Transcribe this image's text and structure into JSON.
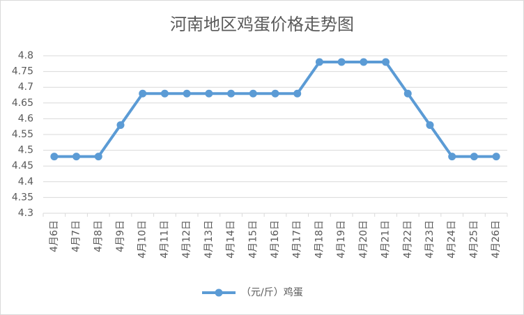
{
  "chart_data": {
    "type": "line",
    "title": "河南地区鸡蛋价格走势图",
    "categories": [
      "4月6日",
      "4月7日",
      "4月8日",
      "4月9日",
      "4月10日",
      "4月11日",
      "4月12日",
      "4月13日",
      "4月14日",
      "4月15日",
      "4月16日",
      "4月17日",
      "4月18日",
      "4月19日",
      "4月20日",
      "4月21日",
      "4月22日",
      "4月23日",
      "4月24日",
      "4月25日",
      "4月26日"
    ],
    "series": [
      {
        "name": "（元/斤）鸡蛋",
        "color": "#5b9bd5",
        "values": [
          4.48,
          4.48,
          4.48,
          4.58,
          4.68,
          4.68,
          4.68,
          4.68,
          4.68,
          4.68,
          4.68,
          4.68,
          4.78,
          4.78,
          4.78,
          4.78,
          4.68,
          4.58,
          4.48,
          4.48,
          4.48
        ]
      }
    ],
    "ylim": [
      4.3,
      4.8
    ],
    "yticks": [
      4.3,
      4.35,
      4.4,
      4.45,
      4.5,
      4.55,
      4.6,
      4.65,
      4.7,
      4.75,
      4.8
    ],
    "grid": true,
    "legend": "bottom"
  }
}
